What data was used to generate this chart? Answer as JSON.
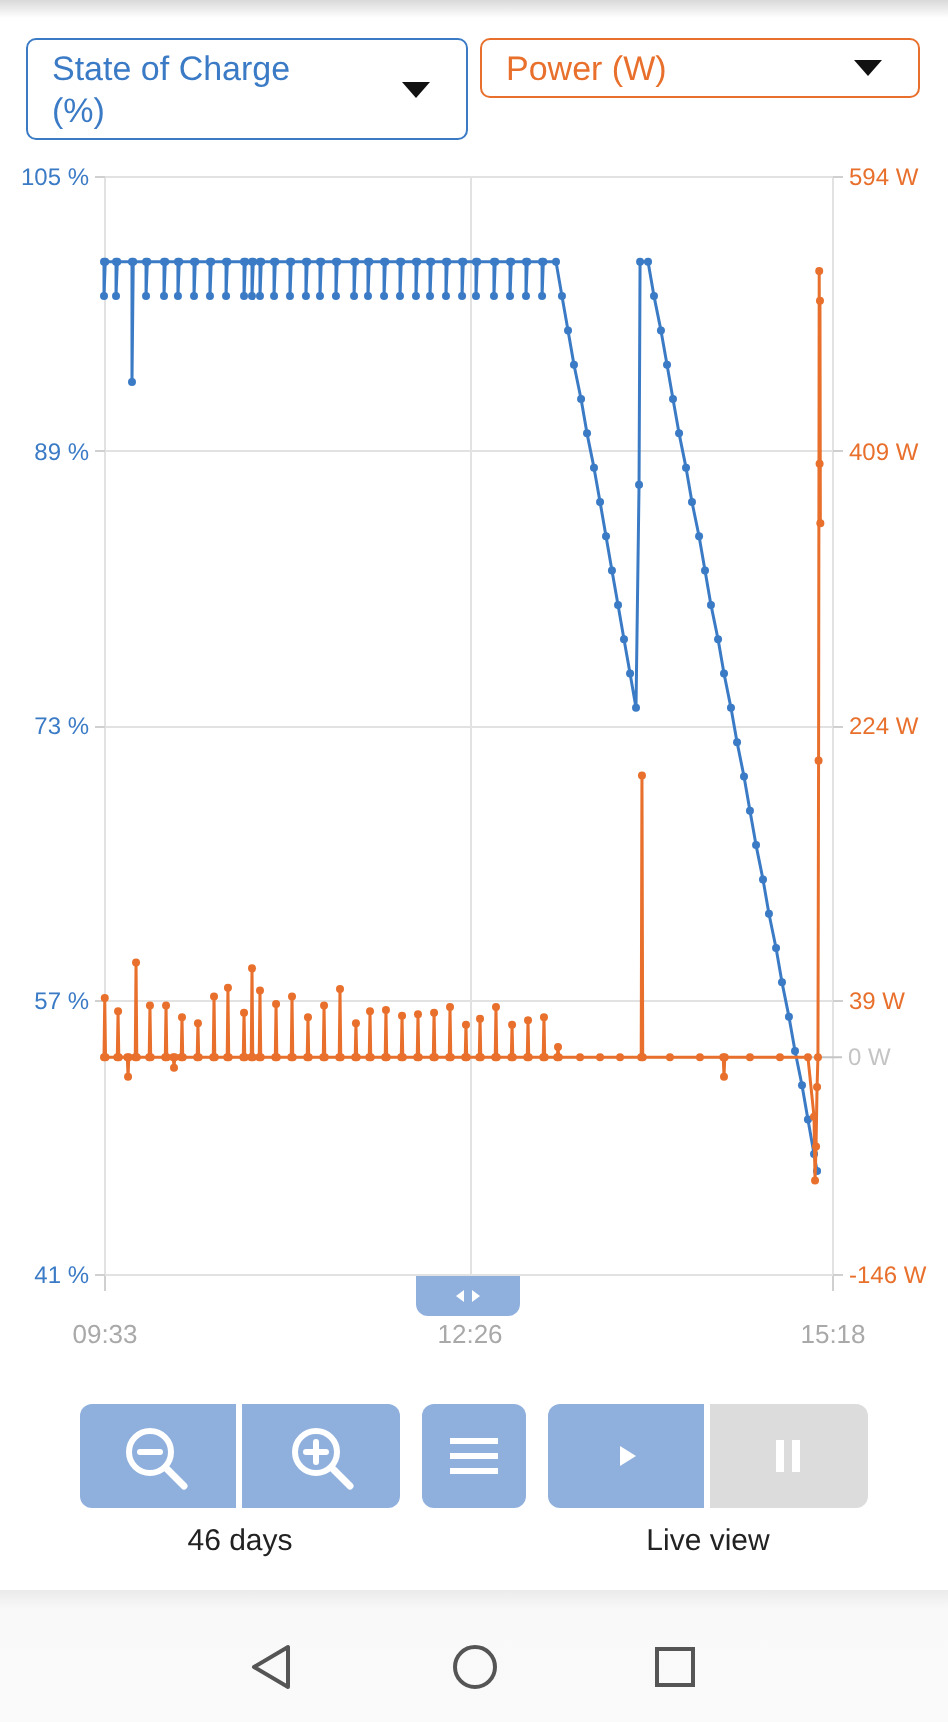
{
  "chart_data": {
    "type": "line",
    "ylabel": "State of Charge (%)",
    "y2label": "Power (W)",
    "xlim": [
      9.55,
      15.3
    ],
    "xticks": [
      {
        "value": 9.55,
        "label": "09:33"
      },
      {
        "value": 12.4333,
        "label": "12:26"
      },
      {
        "value": 15.3,
        "label": "15:18"
      }
    ],
    "ylim": [
      41,
      105
    ],
    "yticks": [
      {
        "value": 41,
        "label": "41 %"
      },
      {
        "value": 57,
        "label": "57 %"
      },
      {
        "value": 73,
        "label": "73 %"
      },
      {
        "value": 89,
        "label": "89 %"
      },
      {
        "value": 105,
        "label": "105 %"
      }
    ],
    "y2lim": [
      -146,
      594
    ],
    "y2ticks": [
      {
        "value": -146,
        "label": "-146 W"
      },
      {
        "value": 39,
        "label": "39 W"
      },
      {
        "value": 224,
        "label": "224 W"
      },
      {
        "value": 409,
        "label": "409 W"
      },
      {
        "value": 594,
        "label": "594 W"
      }
    ],
    "grid": true,
    "marker": "circle",
    "ref_lines": [
      {
        "axis": "y2",
        "value": 0,
        "label": "0 W",
        "color": "#c4c4c4"
      }
    ],
    "annotations": [
      "46 days",
      "Live view"
    ],
    "series": [
      {
        "color": "#3b7bc6",
        "axis": "y",
        "x": [
          9.55,
          9.55,
          9.56,
          9.645,
          9.645,
          9.655,
          9.771,
          9.771,
          9.781,
          9.882,
          9.882,
          9.892,
          10.024,
          10.024,
          10.034,
          10.134,
          10.134,
          10.144,
          10.261,
          10.261,
          10.271,
          10.387,
          10.387,
          10.397,
          10.514,
          10.514,
          10.524,
          10.656,
          10.656,
          10.666,
          10.719,
          10.719,
          10.729,
          10.782,
          10.782,
          10.792,
          10.893,
          10.893,
          10.903,
          11.019,
          11.019,
          11.029,
          11.145,
          11.145,
          11.155,
          11.256,
          11.256,
          11.266,
          11.382,
          11.382,
          11.392,
          11.525,
          11.525,
          11.535,
          11.635,
          11.635,
          11.645,
          11.762,
          11.762,
          11.772,
          11.888,
          11.888,
          11.898,
          12.014,
          12.014,
          12.024,
          12.125,
          12.125,
          12.135,
          12.251,
          12.251,
          12.261,
          12.378,
          12.378,
          12.388,
          12.488,
          12.488,
          12.498,
          12.63,
          12.63,
          12.64,
          12.757,
          12.757,
          12.767,
          12.883,
          12.883,
          12.893,
          13.01,
          13.01,
          13.02,
          13.12,
          13.167,
          13.215,
          13.262,
          13.318,
          13.365,
          13.42,
          13.468,
          13.515,
          13.562,
          13.61,
          13.657,
          13.705,
          13.752,
          13.776,
          13.784,
          13.847,
          13.894,
          13.949,
          13.997,
          14.044,
          14.092,
          14.147,
          14.194,
          14.25,
          14.297,
          14.344,
          14.4,
          14.447,
          14.502,
          14.55,
          14.605,
          14.652,
          14.7,
          14.755,
          14.802,
          14.858,
          14.905,
          14.96,
          15.008,
          15.063,
          15.11,
          15.158,
          15.182
        ],
        "values": [
          100,
          98,
          100,
          100,
          98,
          100,
          100,
          93,
          100,
          100,
          98,
          100,
          100,
          98,
          100,
          100,
          98,
          100,
          100,
          98,
          100,
          100,
          98,
          100,
          100,
          98,
          100,
          100,
          98,
          100,
          100,
          98,
          100,
          100,
          98,
          100,
          100,
          98,
          100,
          100,
          98,
          100,
          100,
          98,
          100,
          100,
          98,
          100,
          100,
          98,
          100,
          100,
          98,
          100,
          100,
          98,
          100,
          100,
          98,
          100,
          100,
          98,
          100,
          100,
          98,
          100,
          100,
          98,
          100,
          100,
          98,
          100,
          100,
          98,
          100,
          100,
          98,
          100,
          100,
          98,
          100,
          100,
          98,
          100,
          100,
          98,
          100,
          100,
          98,
          100,
          100,
          98,
          96,
          94,
          92,
          90,
          88,
          86,
          84,
          82,
          80,
          78,
          76,
          74,
          87,
          100,
          100,
          98,
          96,
          94,
          92,
          90,
          88,
          86,
          84,
          82,
          80,
          78,
          76,
          74,
          72,
          70,
          68,
          66,
          64,
          62,
          60,
          58,
          56,
          54,
          52,
          50,
          48,
          47
        ]
      },
      {
        "color": "#e8702c",
        "axis": "y2",
        "x": [
          9.55,
          9.556,
          9.562,
          9.655,
          9.661,
          9.667,
          9.734,
          9.74,
          9.746,
          9.797,
          9.803,
          9.809,
          9.907,
          9.913,
          9.919,
          10.034,
          10.04,
          10.046,
          10.097,
          10.103,
          10.109,
          10.16,
          10.166,
          10.172,
          10.286,
          10.292,
          10.298,
          10.413,
          10.419,
          10.425,
          10.523,
          10.529,
          10.535,
          10.65,
          10.656,
          10.662,
          10.713,
          10.719,
          10.725,
          10.776,
          10.782,
          10.788,
          10.903,
          10.909,
          10.915,
          11.029,
          11.035,
          11.041,
          11.155,
          11.161,
          11.167,
          11.282,
          11.288,
          11.294,
          11.408,
          11.414,
          11.42,
          11.534,
          11.54,
          11.546,
          11.645,
          11.651,
          11.657,
          11.771,
          11.777,
          11.783,
          11.898,
          11.904,
          11.91,
          12.024,
          12.03,
          12.036,
          12.151,
          12.157,
          12.163,
          12.277,
          12.283,
          12.289,
          12.403,
          12.409,
          12.415,
          12.514,
          12.52,
          12.526,
          12.64,
          12.646,
          12.652,
          12.767,
          12.773,
          12.779,
          12.893,
          12.899,
          12.905,
          13.019,
          13.025,
          13.031,
          13.13,
          13.136,
          13.142,
          13.31,
          13.468,
          13.626,
          13.793,
          13.799,
          13.805,
          14.02,
          14.257,
          14.441,
          14.447,
          14.453,
          14.652,
          14.889,
          15.11,
          15.158,
          15.166,
          15.174,
          15.182,
          15.189,
          15.194,
          15.199,
          15.202,
          15.205,
          15.208
        ],
        "values": [
          0,
          40,
          0,
          0,
          31,
          0,
          0,
          -13,
          0,
          0,
          64,
          0,
          0,
          35,
          0,
          0,
          35,
          0,
          0,
          -7,
          0,
          0,
          27,
          0,
          0,
          23,
          0,
          0,
          41,
          0,
          0,
          47,
          0,
          0,
          30,
          0,
          0,
          60,
          0,
          0,
          45,
          0,
          0,
          36,
          0,
          0,
          41,
          0,
          0,
          27,
          0,
          0,
          35,
          0,
          0,
          46,
          0,
          0,
          23,
          0,
          0,
          31,
          0,
          0,
          32,
          0,
          0,
          28,
          0,
          0,
          29,
          0,
          0,
          30,
          0,
          0,
          34,
          0,
          0,
          22,
          0,
          0,
          26,
          0,
          0,
          34,
          0,
          0,
          22,
          0,
          0,
          25,
          0,
          0,
          27,
          0,
          0,
          7,
          0,
          0,
          0,
          0,
          0,
          190,
          0,
          0,
          0,
          0,
          -13,
          0,
          0,
          0,
          0,
          -40,
          -83,
          -60,
          -20,
          0,
          200,
          530,
          400,
          510,
          360
        ]
      }
    ]
  }
}
